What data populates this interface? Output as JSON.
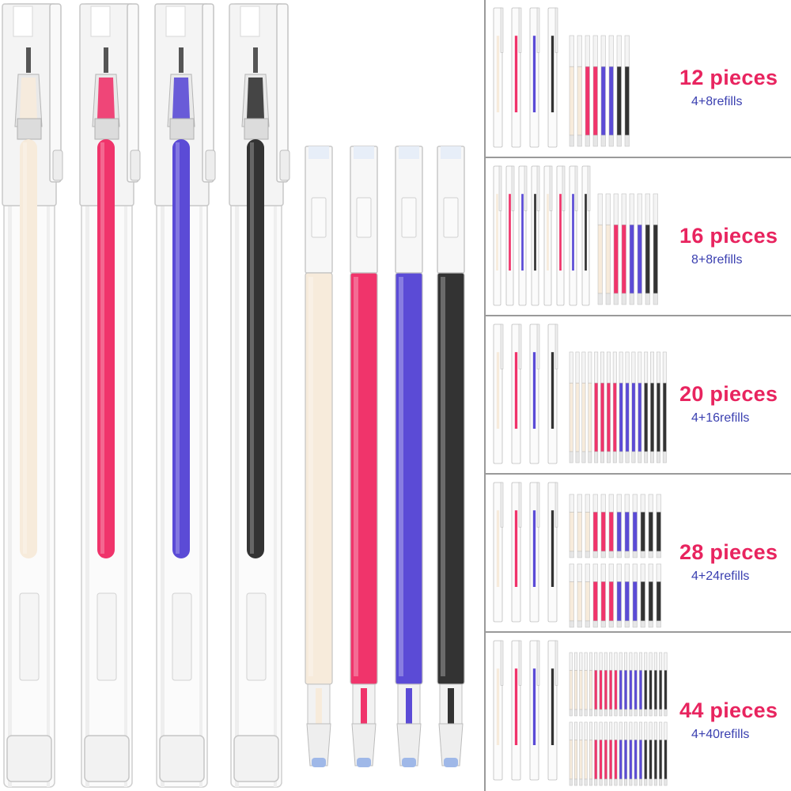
{
  "colors": {
    "cream": "#f7ebdb",
    "pink": "#f0346b",
    "purple": "#5b4bd6",
    "black": "#333333",
    "title_color": "#e8245f",
    "subtitle_color": "#3a3fb0",
    "divider": "#9a9a9a"
  },
  "product": {
    "pens": [
      {
        "ink": "cream",
        "icon": "cream-pen-icon"
      },
      {
        "ink": "pink",
        "icon": "pink-pen-icon"
      },
      {
        "ink": "purple",
        "icon": "purple-pen-icon"
      },
      {
        "ink": "black",
        "icon": "black-pen-icon"
      }
    ],
    "refills": [
      {
        "ink": "cream",
        "icon": "cream-refill-icon"
      },
      {
        "ink": "pink",
        "icon": "pink-refill-icon"
      },
      {
        "ink": "purple",
        "icon": "purple-refill-icon"
      },
      {
        "ink": "black",
        "icon": "black-refill-icon"
      }
    ]
  },
  "options": [
    {
      "title": "12 pieces",
      "subtitle": "4+8refills",
      "pens": 4,
      "refills": 8,
      "refill_rows": 1
    },
    {
      "title": "16 pieces",
      "subtitle": "8+8refills",
      "pens": 8,
      "refills": 8,
      "refill_rows": 1
    },
    {
      "title": "20 pieces",
      "subtitle": "4+16refills",
      "pens": 4,
      "refills": 16,
      "refill_rows": 1
    },
    {
      "title": "28 pieces",
      "subtitle": "4+24refills",
      "pens": 4,
      "refills": 24,
      "refill_rows": 2
    },
    {
      "title": "44 pieces",
      "subtitle": "4+40refills",
      "pens": 4,
      "refills": 40,
      "refill_rows": 2
    }
  ]
}
